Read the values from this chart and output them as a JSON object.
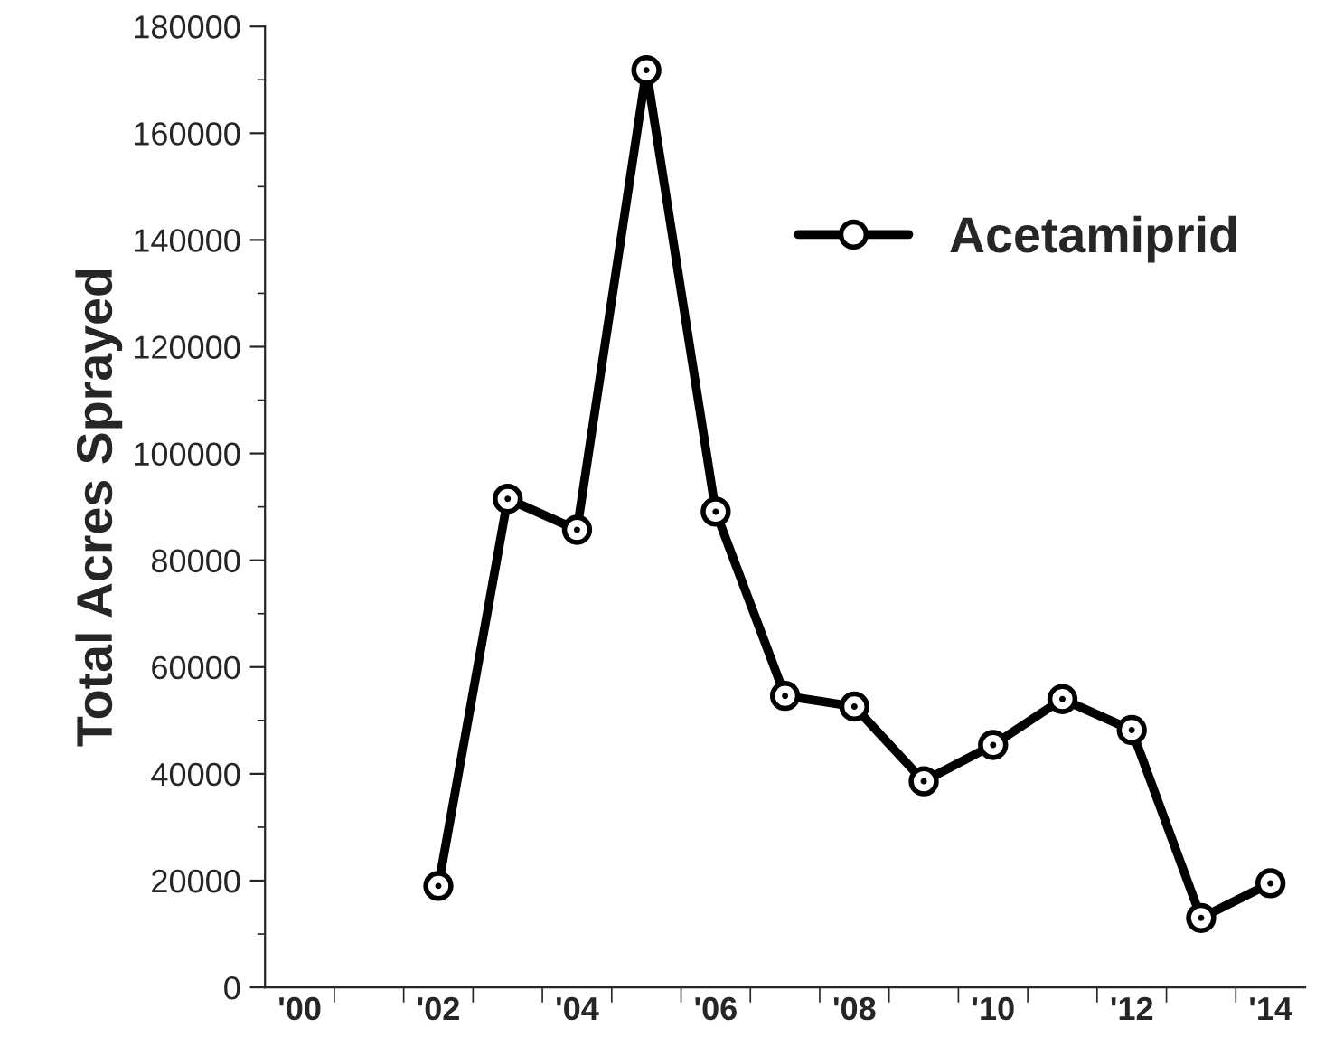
{
  "chart_data": {
    "type": "line",
    "ylabel": "Total Acres Sprayed",
    "categories": [
      "'00",
      null,
      "'02",
      null,
      "'04",
      null,
      "'06",
      null,
      "'08",
      null,
      "'10",
      null,
      "'12",
      null,
      "'14"
    ],
    "series": [
      {
        "name": "Acetamiprid",
        "color": "#000000",
        "values": [
          null,
          null,
          19000,
          91500,
          85700,
          171800,
          89100,
          54600,
          52600,
          38600,
          45400,
          54000,
          48200,
          13000,
          19500
        ]
      }
    ],
    "ylim": [
      0,
      180000
    ],
    "yticks": [
      0,
      20000,
      40000,
      60000,
      80000,
      100000,
      120000,
      140000,
      160000,
      180000
    ],
    "grid": false,
    "legend": "top right",
    "marker": "circle",
    "line_style": "solid"
  }
}
